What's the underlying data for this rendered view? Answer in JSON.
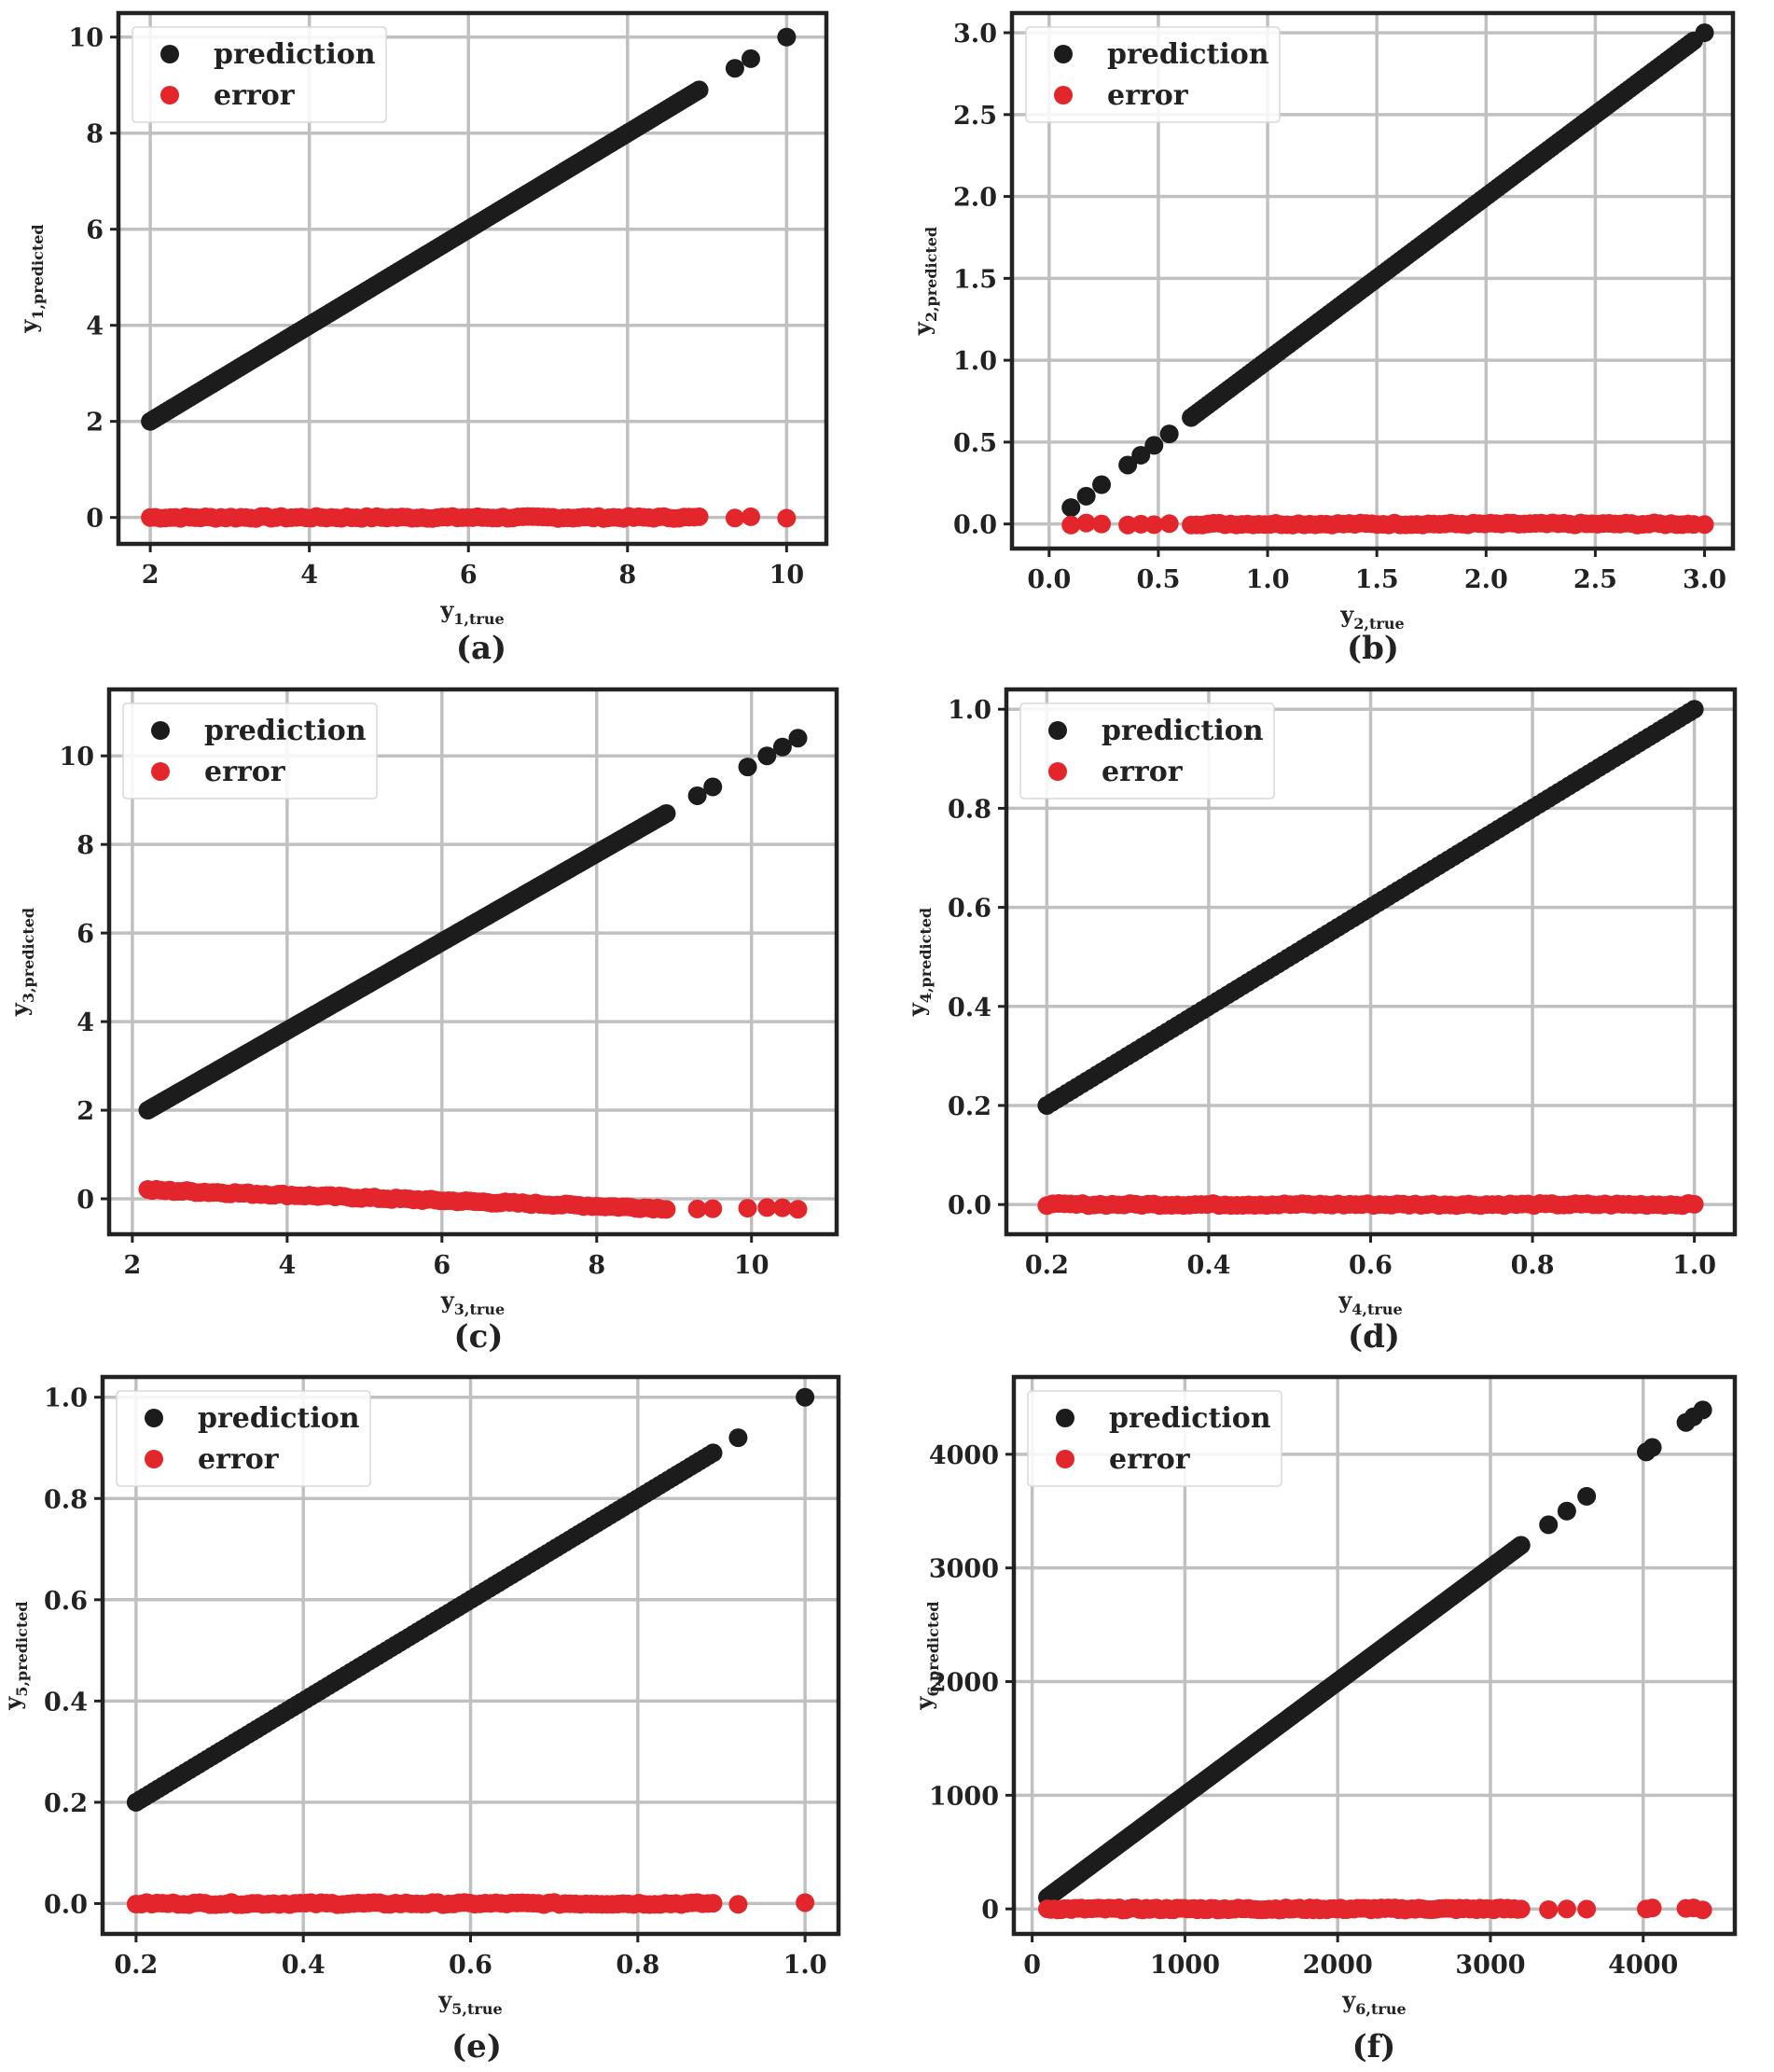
{
  "colors": {
    "prediction": "#1c1c1c",
    "error": "#e3262b",
    "grid": "#c0c0c0",
    "frame": "#222222"
  },
  "chart_data": [
    {
      "type": "scatter",
      "panel": "(a)",
      "xlabel": "y",
      "xlabel_sub": "1,true",
      "ylabel": "y",
      "ylabel_sub": "1,predicted",
      "xlim": [
        1.6,
        10.5
      ],
      "ylim": [
        -0.55,
        10.5
      ],
      "xticks": [
        2,
        4,
        6,
        8,
        10
      ],
      "yticks": [
        0,
        2,
        4,
        6,
        8,
        10
      ],
      "xtick_labels": [
        "2",
        "4",
        "6",
        "8",
        "10"
      ],
      "ytick_labels": [
        "0",
        "2",
        "4",
        "6",
        "8",
        "10"
      ],
      "legend": [
        "prediction",
        "error"
      ],
      "series": [
        {
          "name": "prediction",
          "x_range": [
            2,
            8.9
          ],
          "points": 180,
          "slope": 1,
          "intercept": 0,
          "extra_x": [
            9.35,
            9.55,
            10
          ]
        },
        {
          "name": "error",
          "x_range": [
            2,
            8.9
          ],
          "points": 110,
          "y_start": 0,
          "y_end": 0,
          "extra_x": [
            9.35,
            9.55,
            10
          ]
        }
      ]
    },
    {
      "type": "scatter",
      "panel": "(b)",
      "xlabel": "y",
      "xlabel_sub": "2,true",
      "ylabel": "y",
      "ylabel_sub": "2,predicted",
      "xlim": [
        -0.17,
        3.13
      ],
      "ylim": [
        -0.15,
        3.12
      ],
      "xticks": [
        0,
        0.5,
        1,
        1.5,
        2,
        2.5,
        3
      ],
      "yticks": [
        0,
        0.5,
        1,
        1.5,
        2,
        2.5,
        3
      ],
      "xtick_labels": [
        "0.0",
        "0.5",
        "1.0",
        "1.5",
        "2.0",
        "2.5",
        "3.0"
      ],
      "ytick_labels": [
        "0.0",
        "0.5",
        "1.0",
        "1.5",
        "2.0",
        "2.5",
        "3.0"
      ],
      "legend": [
        "prediction",
        "error"
      ],
      "series": [
        {
          "name": "prediction",
          "x_range": [
            0.65,
            2.95
          ],
          "points": 150,
          "slope": 1,
          "intercept": 0,
          "extra_x": [
            0.1,
            0.17,
            0.24,
            0.36,
            0.42,
            0.48,
            0.55,
            3.0
          ]
        },
        {
          "name": "error",
          "x_range": [
            0.65,
            2.95
          ],
          "points": 90,
          "y_start": 0,
          "y_end": 0,
          "extra_x": [
            0.1,
            0.17,
            0.24,
            0.36,
            0.42,
            0.48,
            0.55,
            3.0
          ]
        }
      ]
    },
    {
      "type": "scatter",
      "panel": "(c)",
      "xlabel": "y",
      "xlabel_sub": "3,true",
      "ylabel": "y",
      "ylabel_sub": "3,predicted",
      "xlim": [
        1.7,
        11.1
      ],
      "ylim": [
        -0.8,
        11.5
      ],
      "xticks": [
        2,
        4,
        6,
        8,
        10
      ],
      "yticks": [
        0,
        2,
        4,
        6,
        8,
        10
      ],
      "xtick_labels": [
        "2",
        "4",
        "6",
        "8",
        "10"
      ],
      "ytick_labels": [
        "0",
        "2",
        "4",
        "6",
        "8",
        "10"
      ],
      "legend": [
        "prediction",
        "error"
      ],
      "series": [
        {
          "name": "prediction",
          "x_range": [
            2.2,
            8.9
          ],
          "points": 180,
          "slope": 1.0,
          "intercept": -0.2,
          "extra_x": [
            9.3,
            9.5,
            9.95,
            10.2,
            10.4,
            10.6
          ]
        },
        {
          "name": "error",
          "x_range": [
            2.2,
            8.9
          ],
          "points": 120,
          "y_start": 0.2,
          "y_end": -0.22,
          "extra_x": [
            9.3,
            9.5,
            9.95,
            10.2,
            10.4,
            10.6
          ]
        }
      ]
    },
    {
      "type": "scatter",
      "panel": "(d)",
      "xlabel": "y",
      "xlabel_sub": "4,true",
      "ylabel": "y",
      "ylabel_sub": "4,predicted",
      "xlim": [
        0.15,
        1.05
      ],
      "ylim": [
        -0.06,
        1.04
      ],
      "xticks": [
        0.2,
        0.4,
        0.6,
        0.8,
        1.0
      ],
      "yticks": [
        0,
        0.2,
        0.4,
        0.6,
        0.8,
        1.0
      ],
      "xtick_labels": [
        "0.2",
        "0.4",
        "0.6",
        "0.8",
        "1.0"
      ],
      "ytick_labels": [
        "0.0",
        "0.2",
        "0.4",
        "0.6",
        "0.8",
        "1.0"
      ],
      "legend": [
        "prediction",
        "error"
      ],
      "series": [
        {
          "name": "prediction",
          "x_range": [
            0.2,
            1.0
          ],
          "points": 130,
          "slope": 1,
          "intercept": 0,
          "extra_x": []
        },
        {
          "name": "error",
          "x_range": [
            0.2,
            1.0
          ],
          "points": 110,
          "y_start": 0,
          "y_end": 0,
          "extra_x": []
        }
      ]
    },
    {
      "type": "scatter",
      "panel": "(e)",
      "xlabel": "y",
      "xlabel_sub": "5,true",
      "ylabel": "y",
      "ylabel_sub": "5,predicted",
      "xlim": [
        0.16,
        1.04
      ],
      "ylim": [
        -0.06,
        1.04
      ],
      "xticks": [
        0.2,
        0.4,
        0.6,
        0.8,
        1.0
      ],
      "yticks": [
        0,
        0.2,
        0.4,
        0.6,
        0.8,
        1.0
      ],
      "xtick_labels": [
        "0.2",
        "0.4",
        "0.6",
        "0.8",
        "1.0"
      ],
      "ytick_labels": [
        "0.0",
        "0.2",
        "0.4",
        "0.6",
        "0.8",
        "1.0"
      ],
      "legend": [
        "prediction",
        "error"
      ],
      "series": [
        {
          "name": "prediction",
          "x_range": [
            0.2,
            0.89
          ],
          "points": 130,
          "slope": 1,
          "intercept": 0,
          "extra_x": [
            0.92,
            1.0
          ]
        },
        {
          "name": "error",
          "x_range": [
            0.2,
            0.89
          ],
          "points": 110,
          "y_start": 0,
          "y_end": 0,
          "extra_x": [
            0.92,
            1.0
          ]
        }
      ]
    },
    {
      "type": "scatter",
      "panel": "(f)",
      "xlabel": "y",
      "xlabel_sub": "6,true",
      "ylabel": "y",
      "ylabel_sub": "6,predicted",
      "xlim": [
        -120,
        4600
      ],
      "ylim": [
        -220,
        4680
      ],
      "xticks": [
        0,
        1000,
        2000,
        3000,
        4000
      ],
      "yticks": [
        0,
        1000,
        2000,
        3000,
        4000
      ],
      "xtick_labels": [
        "0",
        "1000",
        "2000",
        "3000",
        "4000"
      ],
      "ytick_labels": [
        "0",
        "1000",
        "2000",
        "3000",
        "4000"
      ],
      "legend": [
        "prediction",
        "error"
      ],
      "series": [
        {
          "name": "prediction",
          "x_range": [
            100,
            3200
          ],
          "points": 220,
          "slope": 1,
          "intercept": 0,
          "extra_x": [
            3380,
            3500,
            3630,
            4020,
            4060,
            4280,
            4330,
            4390
          ]
        },
        {
          "name": "error",
          "x_range": [
            100,
            3200
          ],
          "points": 140,
          "y_start": 0,
          "y_end": 0,
          "extra_x": [
            3380,
            3500,
            3630,
            4020,
            4060,
            4280,
            4330,
            4390
          ]
        }
      ]
    }
  ]
}
